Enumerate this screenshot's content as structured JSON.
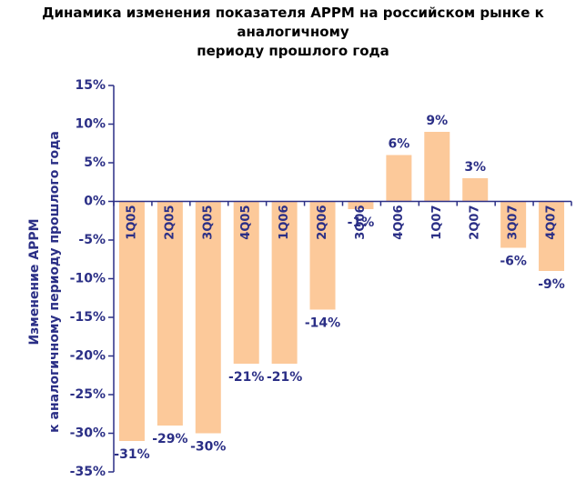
{
  "chart_data": {
    "type": "bar",
    "title_line1": "Динамика изменения показателя APPM на российском рынке к аналогичному",
    "title_line2": "периоду прошлого года",
    "ylabel_line1": "Изменение APPM",
    "ylabel_line2": "к аналогичному периоду прошлого года",
    "categories": [
      "1Q05",
      "2Q05",
      "3Q05",
      "4Q05",
      "1Q06",
      "2Q06",
      "3Q06",
      "4Q06",
      "1Q07",
      "2Q07",
      "3Q07",
      "4Q07"
    ],
    "values": [
      -31,
      -29,
      -30,
      -21,
      -21,
      -14,
      -1,
      6,
      9,
      3,
      -6,
      -9
    ],
    "data_labels": [
      "-31%",
      "-29%",
      "-30%",
      "-21%",
      "-21%",
      "-14%",
      "-1%",
      "6%",
      "9%",
      "3%",
      "-6%",
      "-9%"
    ],
    "yticks": [
      "15%",
      "10%",
      "5%",
      "0%",
      "-5%",
      "-10%",
      "-15%",
      "-20%",
      "-25%",
      "-30%",
      "-35%"
    ],
    "ylim": [
      -35,
      15
    ],
    "grid": false,
    "legend": "none",
    "bar_color": "#FCC99A",
    "text_color": "#2B2F86"
  }
}
